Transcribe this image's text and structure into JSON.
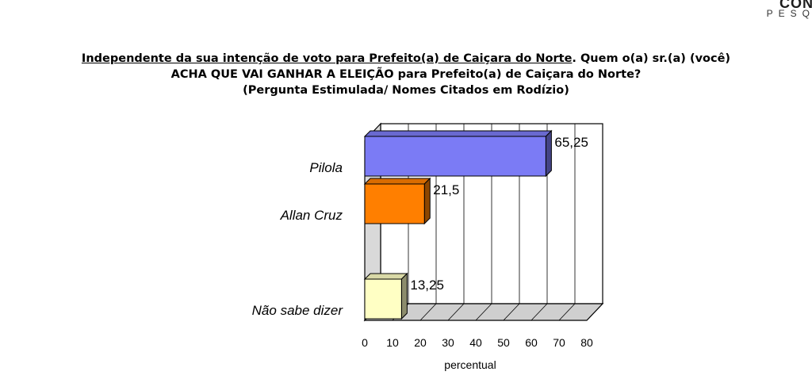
{
  "brand": {
    "line1": "CON",
    "line2": "PESQ"
  },
  "title": {
    "line1_underlined": "Independente da sua intenção de voto para Prefeito(a) de Caiçara do Norte",
    "line1_rest": ". Quem o(a) sr.(a) (você)",
    "line2": "ACHA QUE VAI GANHAR A ELEIÇÃO para Prefeito(a) de Caiçara do Norte?",
    "line3": "(Pergunta Estimulada/ Nomes Citados em Rodízio)"
  },
  "chart_data": {
    "type": "bar",
    "orientation": "horizontal",
    "categories": [
      "Pilola",
      "Allan Cruz",
      "Não sabe dizer"
    ],
    "values": [
      65.25,
      21.5,
      13.25
    ],
    "value_labels": [
      "65,25",
      "21,5",
      "13,25"
    ],
    "colors": [
      "#7b7bf5",
      "#ff7f00",
      "#ffffc4"
    ],
    "xlabel": "percentual",
    "xlim": [
      0,
      80
    ],
    "xticks": [
      "0",
      "10",
      "20",
      "30",
      "40",
      "50",
      "60",
      "70",
      "80"
    ],
    "grid": true
  }
}
